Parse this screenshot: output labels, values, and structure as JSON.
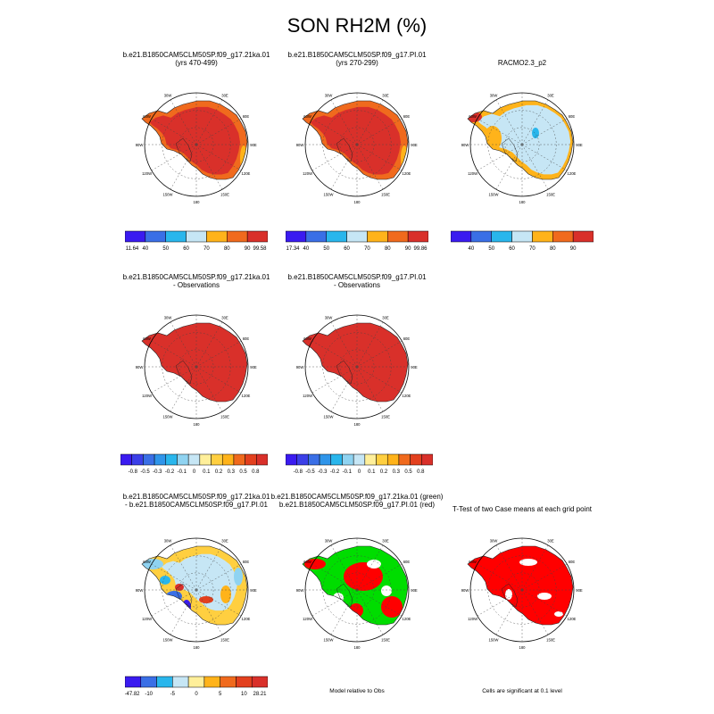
{
  "title": "SON RH2M (%)",
  "colors": {
    "land_high": "#d9302a",
    "land_mid": "#f06a1d",
    "obs_light": "#c6e6f5",
    "obs_orange": "#ffb31a",
    "sig_red": "#ff0000",
    "green": "#00dd00"
  },
  "longitude_labels": [
    "30W",
    "30E",
    "60W",
    "60E",
    "90W",
    "90E",
    "120W",
    "120E",
    "150W",
    "150E",
    "180"
  ],
  "panels": [
    {
      "id": "p1",
      "title_lines": [
        "b.e21.B1850CAM5CLM50SP.f09_g17.21ka.01",
        "(yrs 470-499)"
      ]
    },
    {
      "id": "p2",
      "title_lines": [
        "b.e21.B1850CAM5CLM50SP.f09_g17.PI.01",
        "(yrs 270-299)"
      ]
    },
    {
      "id": "p3",
      "title_lines": [
        "RACMO2.3_p2"
      ]
    },
    {
      "id": "p4",
      "title_lines": [
        "b.e21.B1850CAM5CLM50SP.f09_g17.21ka.01",
        "- Observations"
      ]
    },
    {
      "id": "p5",
      "title_lines": [
        "b.e21.B1850CAM5CLM50SP.f09_g17.PI.01",
        "- Observations"
      ]
    },
    {
      "id": "p6",
      "title_lines": [
        "b.e21.B1850CAM5CLM50SP.f09_g17.21ka.01",
        "- b.e21.B1850CAM5CLM50SP.f09_g17.PI.01"
      ]
    },
    {
      "id": "p7",
      "title_lines": [
        "b.e21.B1850CAM5CLM50SP.f09_g17.21ka.01 (green)",
        "b.e21.B1850CAM5CLM50SP.f09_g17.PI.01 (red)"
      ]
    },
    {
      "id": "p8",
      "title_lines": [
        "T-Test of two Case means at each grid point"
      ]
    }
  ],
  "colorbars": [
    {
      "id": "cb1",
      "labels": [
        "11.64",
        "40",
        "50",
        "60",
        "70",
        "80",
        "90",
        "99.58"
      ],
      "colors": [
        "#3a1bf0",
        "#3a6fe6",
        "#29b6ec",
        "#c6e6f5",
        "#ffb31a",
        "#f06a1d",
        "#d9302a"
      ]
    },
    {
      "id": "cb2",
      "labels": [
        "17.34",
        "40",
        "50",
        "60",
        "70",
        "80",
        "90",
        "99.86"
      ],
      "colors": [
        "#3a1bf0",
        "#3a6fe6",
        "#29b6ec",
        "#c6e6f5",
        "#ffb31a",
        "#f06a1d",
        "#d9302a"
      ]
    },
    {
      "id": "cb3",
      "labels": [
        "",
        "40",
        "50",
        "60",
        "70",
        "80",
        "90",
        ""
      ],
      "colors": [
        "#3a1bf0",
        "#3a6fe6",
        "#29b6ec",
        "#c6e6f5",
        "#ffb31a",
        "#f06a1d",
        "#d9302a"
      ]
    },
    {
      "id": "cb4",
      "labels": [
        "",
        "-0.8",
        "-0.5",
        "-0.3",
        "-0.2",
        "-0.1",
        "0",
        "0.1",
        "0.2",
        "0.3",
        "0.5",
        "0.8",
        ""
      ],
      "colors": [
        "#3a1bf0",
        "#3b3fe8",
        "#3a6fe6",
        "#2f95ea",
        "#29b6ec",
        "#8fd3f1",
        "#c6e6f5",
        "#ffef9a",
        "#ffcf40",
        "#ffb31a",
        "#f06a1d",
        "#e3401e",
        "#d9302a"
      ]
    },
    {
      "id": "cb5",
      "labels": [
        "",
        "-0.8",
        "-0.5",
        "-0.3",
        "-0.2",
        "-0.1",
        "0",
        "0.1",
        "0.2",
        "0.3",
        "0.5",
        "0.8",
        ""
      ],
      "colors": [
        "#3a1bf0",
        "#3b3fe8",
        "#3a6fe6",
        "#2f95ea",
        "#29b6ec",
        "#8fd3f1",
        "#c6e6f5",
        "#ffef9a",
        "#ffcf40",
        "#ffb31a",
        "#f06a1d",
        "#e3401e",
        "#d9302a"
      ]
    },
    {
      "id": "cb6",
      "labels": [
        "-47.82",
        "-10",
        "-5",
        "0",
        "5",
        "10",
        "28.21"
      ],
      "colors": [
        "#3a1bf0",
        "#3a6fe6",
        "#29b6ec",
        "#c6e6f5",
        "#ffef9a",
        "#ffb31a",
        "#f06a1d",
        "#e3401e",
        "#d9302a"
      ]
    }
  ],
  "notes": {
    "model_relative": "Model relative to Obs",
    "cells_significant": "Cells are significant at 0.1 level"
  }
}
